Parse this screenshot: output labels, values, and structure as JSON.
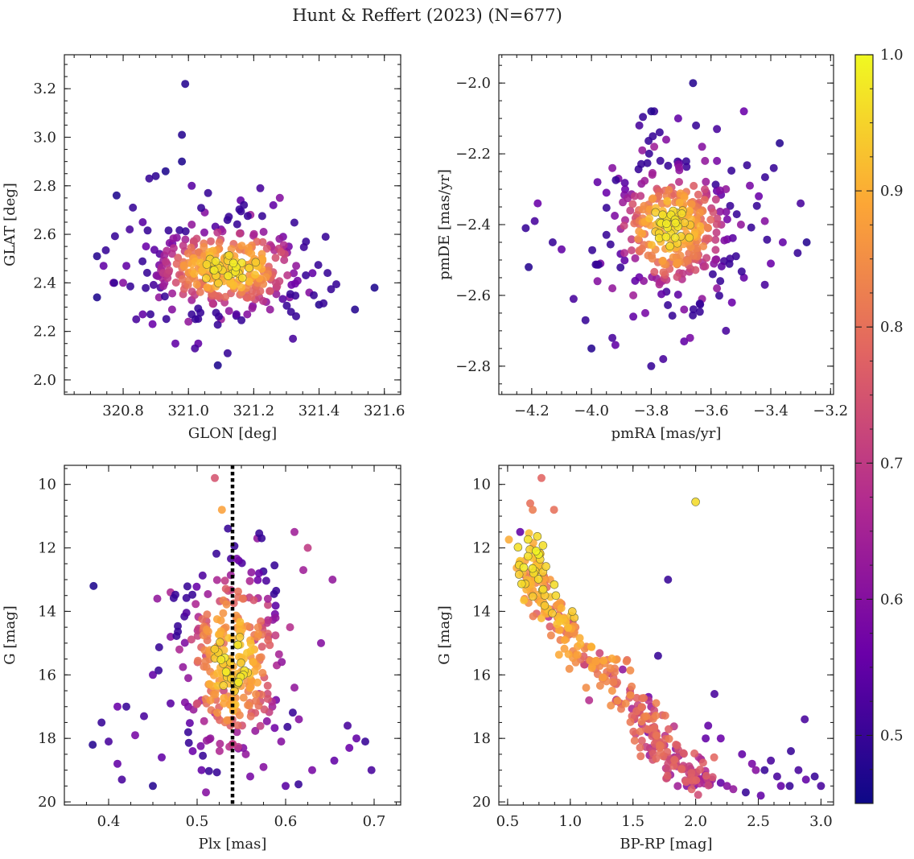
{
  "figure": {
    "title": "Hunt & Reffert (2023) (N=677)"
  },
  "colorbar": {
    "min": 0.45,
    "max": 1.0,
    "ticks": [
      "0.5",
      "0.6",
      "0.7",
      "0.8",
      "0.9",
      "1.0"
    ],
    "tick_values": [
      0.5,
      0.6,
      0.7,
      0.8,
      0.9,
      1.0
    ],
    "colormap": "plasma",
    "colors": [
      "#0d0887",
      "#6a00a8",
      "#b12a90",
      "#e16462",
      "#fca636",
      "#f0f921"
    ]
  },
  "chart_data": [
    {
      "type": "scatter",
      "panel": "top-left",
      "xlabel": "GLON [deg]",
      "ylabel": "GLAT [deg]",
      "xlim": [
        320.62,
        321.65
      ],
      "ylim": [
        1.94,
        3.34
      ],
      "xticks": [
        320.8,
        321.0,
        321.2,
        321.4,
        321.6
      ],
      "xticklabels": [
        "320.8",
        "321.0",
        "321.2",
        "321.4",
        "321.6"
      ],
      "yticks": [
        2.0,
        2.2,
        2.4,
        2.6,
        2.8,
        3.0,
        3.2
      ],
      "yticklabels": [
        "2.0",
        "2.2",
        "2.4",
        "2.6",
        "2.8",
        "3.0",
        "3.2"
      ],
      "yinvert": false,
      "points": [
        [
          320.99,
          3.22
        ],
        [
          320.98,
          3.01
        ],
        [
          320.98,
          2.9
        ],
        [
          320.93,
          2.86
        ],
        [
          320.9,
          2.84
        ],
        [
          320.88,
          2.83
        ],
        [
          320.78,
          2.76
        ],
        [
          320.72,
          2.51
        ],
        [
          320.72,
          2.34
        ],
        [
          320.83,
          2.71
        ],
        [
          320.82,
          2.62
        ],
        [
          320.86,
          2.65
        ],
        [
          320.87,
          2.55
        ],
        [
          320.81,
          2.47
        ],
        [
          320.8,
          2.4
        ],
        [
          320.86,
          2.27
        ],
        [
          320.84,
          2.25
        ],
        [
          320.89,
          2.23
        ],
        [
          321.01,
          2.8
        ],
        [
          321.06,
          2.77
        ],
        [
          321.16,
          2.74
        ],
        [
          321.22,
          2.79
        ],
        [
          321.26,
          2.72
        ],
        [
          321.28,
          2.75
        ],
        [
          321.36,
          2.57
        ],
        [
          321.42,
          2.59
        ],
        [
          321.51,
          2.29
        ],
        [
          321.57,
          2.38
        ],
        [
          321.32,
          2.17
        ],
        [
          321.12,
          2.11
        ],
        [
          321.09,
          2.06
        ],
        [
          321.03,
          2.15
        ],
        [
          321.02,
          2.13
        ],
        [
          320.96,
          2.15
        ],
        [
          321.4,
          2.31
        ],
        [
          321.38,
          2.44
        ],
        [
          320.74,
          2.47
        ],
        [
          320.77,
          2.4
        ],
        [
          321.01,
          2.64
        ],
        [
          321.05,
          2.69
        ],
        [
          321.1,
          2.62
        ],
        [
          321.19,
          2.68
        ],
        [
          321.23,
          2.61
        ],
        [
          321.29,
          2.59
        ],
        [
          321.33,
          2.47
        ],
        [
          321.37,
          2.36
        ],
        [
          321.31,
          2.34
        ],
        [
          321.25,
          2.29
        ],
        [
          321.18,
          2.27
        ],
        [
          321.1,
          2.25
        ],
        [
          321.0,
          2.24
        ],
        [
          320.95,
          2.29
        ],
        [
          320.91,
          2.34
        ],
        [
          320.92,
          2.42
        ],
        [
          320.95,
          2.52
        ]
      ],
      "point_colors": [
        0.48,
        0.48,
        0.47,
        0.47,
        0.49,
        0.5,
        0.47,
        0.48,
        0.47,
        0.5,
        0.52,
        0.54,
        0.56,
        0.55,
        0.6,
        0.55,
        0.52,
        0.56,
        0.54,
        0.5,
        0.55,
        0.52,
        0.55,
        0.6,
        0.5,
        0.5,
        0.48,
        0.47,
        0.52,
        0.5,
        0.47,
        0.55,
        0.52,
        0.55,
        0.48,
        0.55,
        0.55,
        0.6,
        0.62,
        0.6,
        0.58,
        0.64,
        0.62,
        0.58,
        0.62,
        0.6,
        0.6,
        0.62,
        0.6,
        0.64,
        0.62,
        0.6,
        0.62,
        0.66,
        0.68
      ],
      "cloud": {
        "center": [
          321.12,
          2.46
        ],
        "spread": [
          0.12,
          0.09
        ],
        "count": 340
      }
    },
    {
      "type": "scatter",
      "panel": "top-right",
      "xlabel": "pmRA [mas/yr]",
      "ylabel": "pmDE [mas/yr]",
      "xlim": [
        -4.31,
        -3.19
      ],
      "ylim": [
        -2.88,
        -1.92
      ],
      "xticks": [
        -4.2,
        -4.0,
        -3.8,
        -3.6,
        -3.4,
        -3.2
      ],
      "xticklabels": [
        "−4.2",
        "−4.0",
        "−3.8",
        "−3.6",
        "−3.4",
        "−3.2"
      ],
      "yticks": [
        -2.8,
        -2.6,
        -2.4,
        -2.2,
        -2.0
      ],
      "yticklabels": [
        "−2.8",
        "−2.6",
        "−2.4",
        "−2.2",
        "−2.0"
      ],
      "yinvert": false,
      "points": [
        [
          -3.66,
          -2.0
        ],
        [
          -3.79,
          -2.08
        ],
        [
          -3.8,
          -2.08
        ],
        [
          -3.84,
          -2.12
        ],
        [
          -3.71,
          -2.1
        ],
        [
          -3.65,
          -2.12
        ],
        [
          -3.58,
          -2.13
        ],
        [
          -3.49,
          -2.08
        ],
        [
          -3.37,
          -2.17
        ],
        [
          -3.39,
          -2.24
        ],
        [
          -3.3,
          -2.34
        ],
        [
          -3.28,
          -2.45
        ],
        [
          -3.31,
          -2.48
        ],
        [
          -3.36,
          -2.45
        ],
        [
          -3.4,
          -2.51
        ],
        [
          -3.42,
          -2.57
        ],
        [
          -3.49,
          -2.55
        ],
        [
          -4.22,
          -2.41
        ],
        [
          -4.21,
          -2.52
        ],
        [
          -4.19,
          -2.39
        ],
        [
          -4.18,
          -2.34
        ],
        [
          -4.13,
          -2.45
        ],
        [
          -4.1,
          -2.47
        ],
        [
          -4.06,
          -2.61
        ],
        [
          -4.02,
          -2.67
        ],
        [
          -4.0,
          -2.75
        ],
        [
          -3.93,
          -2.72
        ],
        [
          -3.92,
          -2.74
        ],
        [
          -3.8,
          -2.8
        ],
        [
          -3.76,
          -2.78
        ],
        [
          -3.69,
          -2.73
        ],
        [
          -3.67,
          -2.72
        ],
        [
          -3.55,
          -2.7
        ],
        [
          -3.53,
          -2.62
        ],
        [
          -3.82,
          -2.65
        ],
        [
          -3.86,
          -2.66
        ],
        [
          -3.98,
          -2.28
        ],
        [
          -3.95,
          -2.31
        ],
        [
          -3.93,
          -2.24
        ],
        [
          -3.91,
          -2.27
        ],
        [
          -3.83,
          -2.19
        ],
        [
          -3.79,
          -2.18
        ],
        [
          -3.75,
          -2.16
        ],
        [
          -3.63,
          -2.18
        ],
        [
          -3.62,
          -2.22
        ],
        [
          -3.58,
          -2.22
        ],
        [
          -3.55,
          -2.3
        ],
        [
          -3.47,
          -2.29
        ],
        [
          -3.44,
          -2.32
        ],
        [
          -3.42,
          -2.39
        ],
        [
          -3.5,
          -2.4
        ],
        [
          -3.97,
          -2.51
        ],
        [
          -3.98,
          -2.56
        ],
        [
          -3.93,
          -2.58
        ],
        [
          -3.86,
          -2.6
        ],
        [
          -3.69,
          -2.64
        ],
        [
          -3.63,
          -2.61
        ],
        [
          -3.58,
          -2.58
        ]
      ],
      "point_colors": [
        0.48,
        0.5,
        0.48,
        0.52,
        0.55,
        0.5,
        0.52,
        0.56,
        0.48,
        0.5,
        0.52,
        0.48,
        0.5,
        0.55,
        0.56,
        0.52,
        0.55,
        0.5,
        0.48,
        0.52,
        0.56,
        0.5,
        0.55,
        0.52,
        0.5,
        0.48,
        0.52,
        0.55,
        0.5,
        0.52,
        0.55,
        0.58,
        0.52,
        0.56,
        0.58,
        0.55,
        0.55,
        0.56,
        0.6,
        0.58,
        0.62,
        0.64,
        0.6,
        0.6,
        0.62,
        0.58,
        0.62,
        0.58,
        0.56,
        0.6,
        0.62,
        0.58,
        0.6,
        0.62,
        0.64,
        0.6,
        0.62,
        0.62
      ],
      "cloud": {
        "center": [
          -3.73,
          -2.41
        ],
        "spread": [
          0.1,
          0.09
        ],
        "count": 340
      }
    },
    {
      "type": "scatter",
      "panel": "bottom-left",
      "xlabel": "Plx [mas]",
      "ylabel": "G [mag]",
      "xlim": [
        0.35,
        0.73
      ],
      "ylim": [
        20.1,
        9.4
      ],
      "xticks": [
        0.4,
        0.5,
        0.6,
        0.7
      ],
      "xticklabels": [
        "0.4",
        "0.5",
        "0.6",
        "0.7"
      ],
      "yticks": [
        10,
        12,
        14,
        16,
        18,
        20
      ],
      "yticklabels": [
        "10",
        "12",
        "14",
        "16",
        "18",
        "20"
      ],
      "yinvert": true,
      "vline": 0.54,
      "points": [
        [
          0.383,
          13.2
        ],
        [
          0.382,
          18.2
        ],
        [
          0.392,
          17.5
        ],
        [
          0.4,
          18.1
        ],
        [
          0.41,
          18.8
        ],
        [
          0.42,
          17.0
        ],
        [
          0.44,
          17.3
        ],
        [
          0.45,
          19.5
        ],
        [
          0.46,
          18.6
        ],
        [
          0.47,
          16.9
        ],
        [
          0.43,
          17.9
        ],
        [
          0.41,
          17.0
        ],
        [
          0.415,
          19.3
        ],
        [
          0.45,
          16.0
        ],
        [
          0.455,
          13.6
        ],
        [
          0.47,
          13.4
        ],
        [
          0.52,
          9.8
        ],
        [
          0.528,
          10.8
        ],
        [
          0.568,
          11.7
        ],
        [
          0.61,
          11.5
        ],
        [
          0.625,
          12.0
        ],
        [
          0.653,
          13.0
        ],
        [
          0.64,
          15.0
        ],
        [
          0.67,
          17.6
        ],
        [
          0.68,
          18.0
        ],
        [
          0.69,
          18.1
        ],
        [
          0.697,
          19.0
        ],
        [
          0.672,
          18.3
        ],
        [
          0.655,
          18.7
        ],
        [
          0.63,
          19.0
        ],
        [
          0.6,
          19.5
        ],
        [
          0.615,
          17.4
        ],
        [
          0.62,
          12.7
        ],
        [
          0.605,
          14.5
        ],
        [
          0.61,
          16.4
        ],
        [
          0.59,
          15.7
        ],
        [
          0.58,
          13.8
        ],
        [
          0.565,
          14.9
        ],
        [
          0.48,
          15.2
        ],
        [
          0.47,
          14.8
        ],
        [
          0.49,
          17.0
        ],
        [
          0.495,
          18.4
        ],
        [
          0.505,
          19.0
        ],
        [
          0.51,
          19.7
        ],
        [
          0.515,
          18.0
        ],
        [
          0.52,
          17.2
        ],
        [
          0.53,
          16.5
        ],
        [
          0.54,
          16.0
        ],
        [
          0.545,
          17.8
        ],
        [
          0.555,
          18.5
        ],
        [
          0.56,
          19.2
        ],
        [
          0.575,
          18.9
        ],
        [
          0.585,
          17.0
        ],
        [
          0.595,
          18.1
        ],
        [
          0.57,
          16.6
        ],
        [
          0.49,
          16.1
        ],
        [
          0.505,
          16.8
        ],
        [
          0.51,
          15.4
        ],
        [
          0.53,
          15.0
        ],
        [
          0.55,
          15.6
        ]
      ],
      "point_colors": [
        0.47,
        0.48,
        0.5,
        0.52,
        0.55,
        0.5,
        0.52,
        0.48,
        0.55,
        0.54,
        0.58,
        0.56,
        0.52,
        0.55,
        0.62,
        0.66,
        0.75,
        0.88,
        0.62,
        0.64,
        0.7,
        0.62,
        0.6,
        0.52,
        0.55,
        0.5,
        0.52,
        0.56,
        0.55,
        0.58,
        0.54,
        0.6,
        0.64,
        0.68,
        0.62,
        0.66,
        0.72,
        0.7,
        0.66,
        0.6,
        0.58,
        0.56,
        0.55,
        0.6,
        0.62,
        0.66,
        0.72,
        0.8,
        0.64,
        0.62,
        0.58,
        0.6,
        0.64,
        0.6,
        0.68,
        0.62,
        0.66,
        0.72,
        0.8,
        0.84
      ],
      "cloud": {
        "center": [
          0.54,
          15.6
        ],
        "spread": [
          0.03,
          1.6
        ],
        "count": 300
      }
    },
    {
      "type": "scatter",
      "panel": "bottom-right",
      "xlabel": "BP-RP [mag]",
      "ylabel": "G [mag]",
      "xlim": [
        0.43,
        3.1
      ],
      "ylim": [
        20.1,
        9.4
      ],
      "xticks": [
        0.5,
        1.0,
        1.5,
        2.0,
        2.5,
        3.0
      ],
      "xticklabels": [
        "0.5",
        "1.0",
        "1.5",
        "2.0",
        "2.5",
        "3.0"
      ],
      "yticks": [
        10,
        12,
        14,
        16,
        18,
        20
      ],
      "yticklabels": [
        "10",
        "12",
        "14",
        "16",
        "18",
        "20"
      ],
      "yinvert": true,
      "points": [
        [
          0.77,
          9.8
        ],
        [
          0.68,
          10.6
        ],
        [
          0.7,
          10.8
        ],
        [
          0.87,
          10.8
        ],
        [
          2.0,
          10.55
        ],
        [
          0.6,
          11.5
        ],
        [
          1.78,
          13.0
        ],
        [
          1.7,
          15.4
        ],
        [
          2.15,
          16.6
        ],
        [
          2.1,
          17.6
        ],
        [
          2.87,
          17.4
        ],
        [
          2.2,
          18.0
        ],
        [
          2.08,
          18.0
        ],
        [
          2.37,
          18.5
        ],
        [
          2.45,
          18.8
        ],
        [
          2.48,
          19.0
        ],
        [
          2.55,
          19.0
        ],
        [
          2.65,
          19.2
        ],
        [
          2.68,
          19.5
        ],
        [
          2.75,
          19.5
        ],
        [
          2.82,
          19.0
        ],
        [
          2.88,
          19.3
        ],
        [
          2.95,
          19.2
        ],
        [
          3.0,
          19.5
        ],
        [
          2.52,
          19.8
        ],
        [
          2.4,
          19.7
        ],
        [
          2.3,
          19.6
        ],
        [
          2.2,
          19.4
        ],
        [
          2.76,
          18.4
        ],
        [
          2.6,
          18.7
        ],
        [
          1.93,
          19.5
        ],
        [
          2.02,
          19.3
        ],
        [
          2.13,
          19.3
        ],
        [
          2.25,
          19.5
        ],
        [
          1.15,
          16.8
        ],
        [
          0.64,
          12.4
        ],
        [
          0.68,
          13.1
        ]
      ],
      "point_colors": [
        0.78,
        0.8,
        0.82,
        0.8,
        0.96,
        0.55,
        0.5,
        0.5,
        0.52,
        0.55,
        0.52,
        0.56,
        0.55,
        0.55,
        0.58,
        0.6,
        0.5,
        0.52,
        0.55,
        0.5,
        0.52,
        0.55,
        0.5,
        0.52,
        0.55,
        0.5,
        0.62,
        0.55,
        0.5,
        0.52,
        0.6,
        0.62,
        0.64,
        0.6,
        0.68,
        0.88,
        0.84
      ],
      "sequence": [
        [
          0.65,
          12.0
        ],
        [
          0.75,
          13.2
        ],
        [
          0.85,
          14.0
        ],
        [
          1.0,
          14.8
        ],
        [
          1.2,
          15.5
        ],
        [
          1.4,
          16.4
        ],
        [
          1.55,
          17.2
        ],
        [
          1.65,
          18.0
        ],
        [
          1.8,
          18.6
        ],
        [
          1.95,
          19.1
        ],
        [
          2.1,
          19.3
        ]
      ],
      "cloud": {
        "spread": [
          0.07,
          0.3
        ],
        "count": 360
      }
    }
  ]
}
